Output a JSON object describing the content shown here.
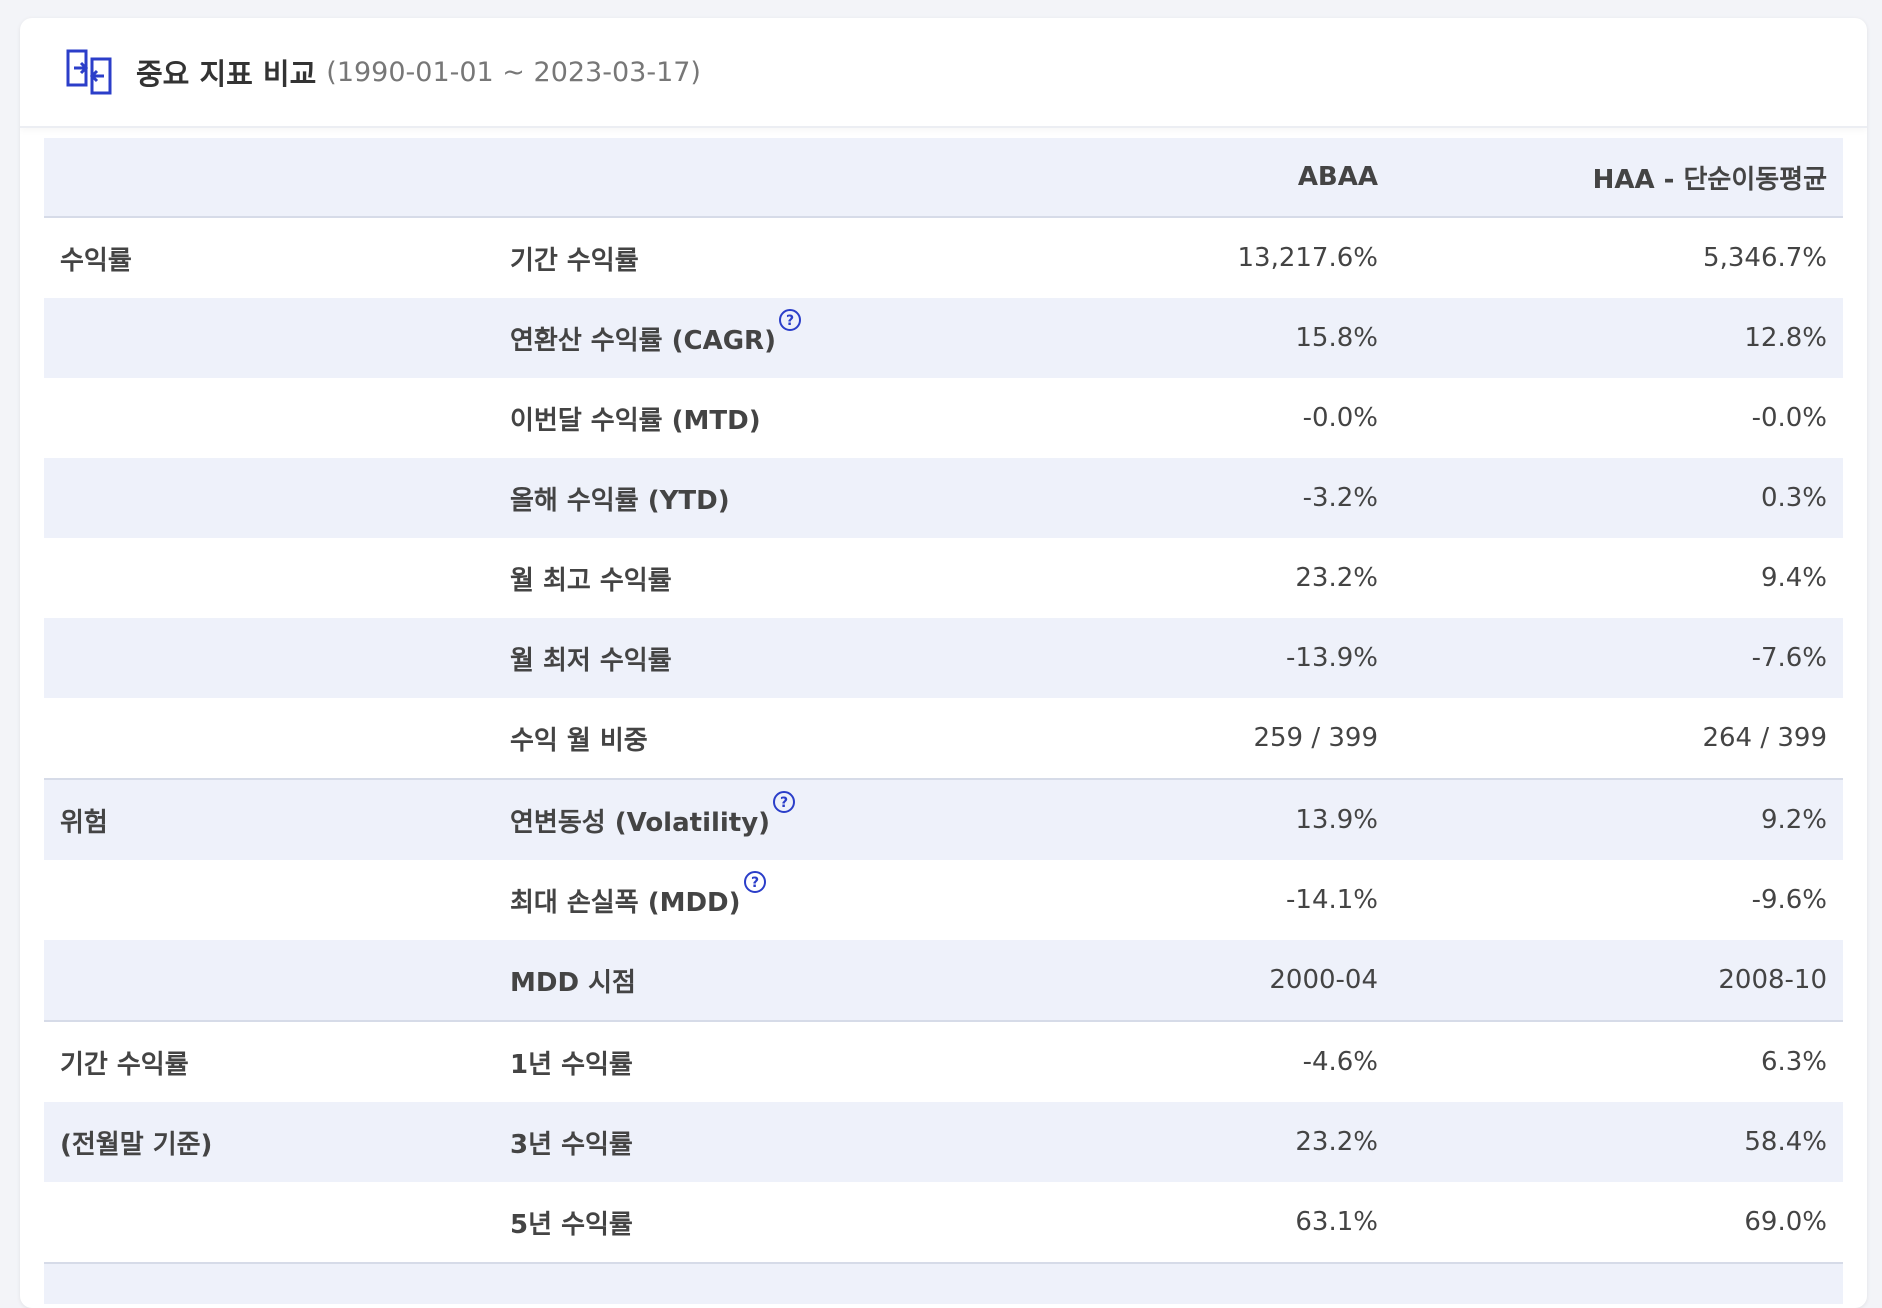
{
  "header": {
    "title": "중요 지표 비교",
    "period": "(1990-01-01 ~ 2023-03-17)",
    "icon": "compare-arrows-icon",
    "accent_color": "#2b3ec9"
  },
  "table": {
    "columns": [
      "",
      "",
      "ABAA",
      "HAA - 단순이동평균"
    ],
    "rows": [
      {
        "group": "수익률",
        "metric": "기간 수익률",
        "help": false,
        "abaa": "13,217.6%",
        "haa": "5,346.7%"
      },
      {
        "group": "",
        "metric": "연환산 수익률 (CAGR)",
        "help": true,
        "abaa": "15.8%",
        "haa": "12.8%"
      },
      {
        "group": "",
        "metric": "이번달 수익률 (MTD)",
        "help": false,
        "abaa": "-0.0%",
        "haa": "-0.0%"
      },
      {
        "group": "",
        "metric": "올해 수익률 (YTD)",
        "help": false,
        "abaa": "-3.2%",
        "haa": "0.3%"
      },
      {
        "group": "",
        "metric": "월 최고 수익률",
        "help": false,
        "abaa": "23.2%",
        "haa": "9.4%"
      },
      {
        "group": "",
        "metric": "월 최저 수익률",
        "help": false,
        "abaa": "-13.9%",
        "haa": "-7.6%"
      },
      {
        "group": "",
        "metric": "수익 월 비중",
        "help": false,
        "abaa": "259 / 399",
        "haa": "264 / 399"
      },
      {
        "group": "위험",
        "metric": "연변동성 (Volatility)",
        "help": true,
        "abaa": "13.9%",
        "haa": "9.2%"
      },
      {
        "group": "",
        "metric": "최대 손실폭 (MDD)",
        "help": true,
        "abaa": "-14.1%",
        "haa": "-9.6%"
      },
      {
        "group": "",
        "metric": "MDD 시점",
        "help": false,
        "abaa": "2000-04",
        "haa": "2008-10"
      },
      {
        "group": "기간 수익률",
        "metric": "1년 수익률",
        "help": false,
        "abaa": "-4.6%",
        "haa": "6.3%"
      },
      {
        "group": "(전월말 기준)",
        "metric": "3년 수익률",
        "help": false,
        "abaa": "23.2%",
        "haa": "58.4%"
      },
      {
        "group": "",
        "metric": "5년 수익률",
        "help": false,
        "abaa": "63.1%",
        "haa": "69.0%"
      }
    ]
  }
}
